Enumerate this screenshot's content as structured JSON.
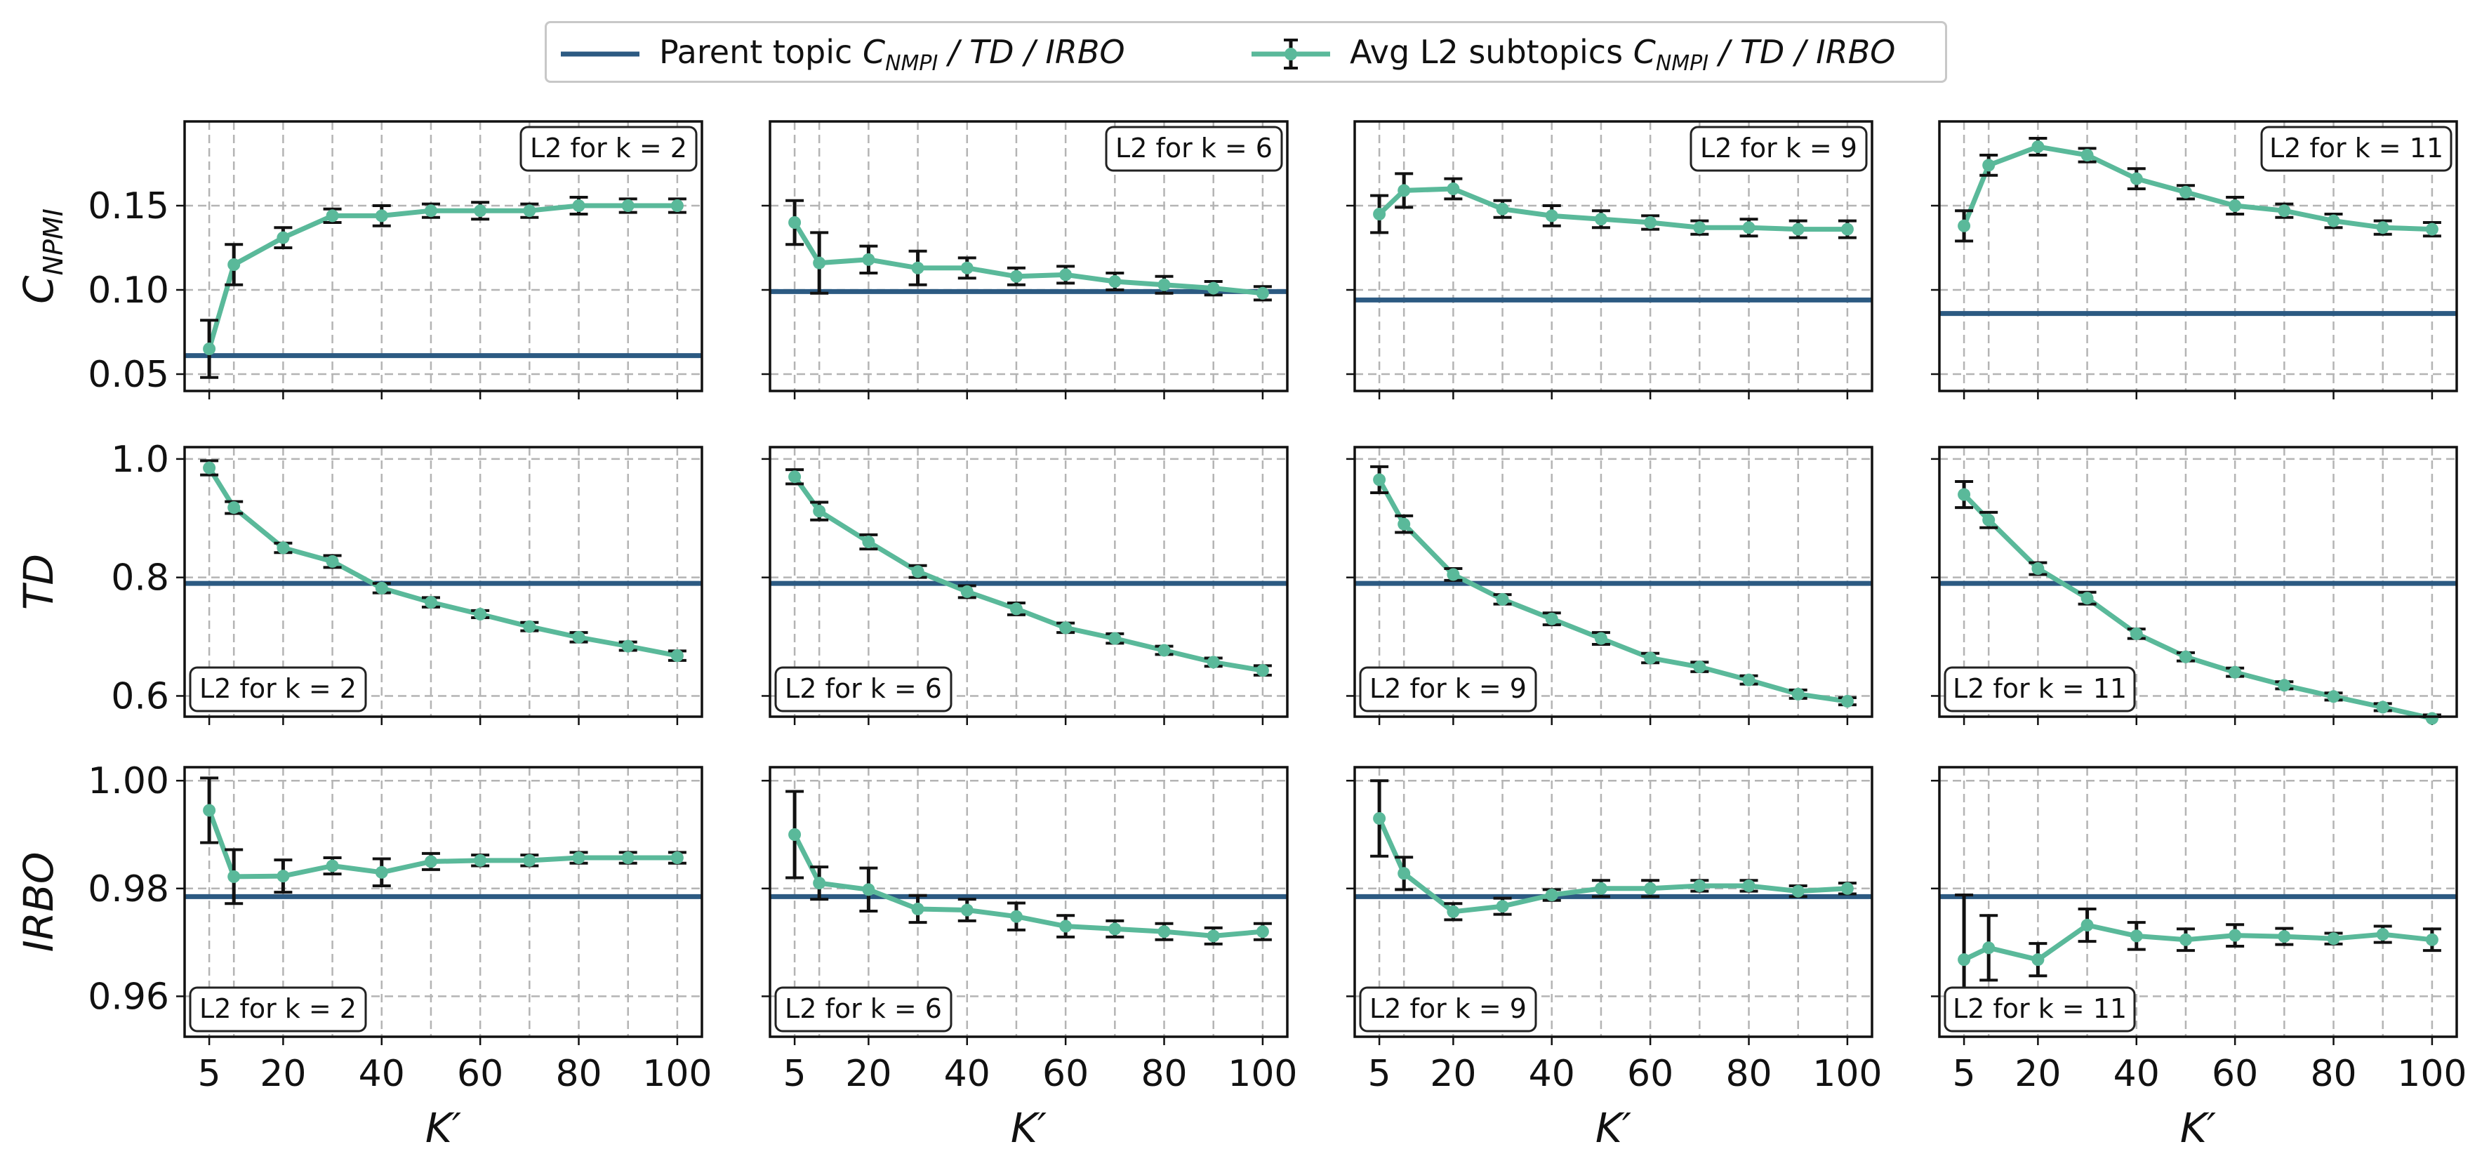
{
  "legend": {
    "parent_prefix": "Parent topic ",
    "avg_prefix": "Avg L2 subtopics ",
    "metric_base": "C",
    "metric_sub": "NMPI",
    "metric_rest": " / TD / IRBO"
  },
  "colors": {
    "parent_line": "#2c5a82",
    "subtopic_line": "#5ab99a",
    "error_bar": "#111111",
    "grid": "#b4b4b4"
  },
  "chart_data": {
    "type": "line",
    "x": [
      5,
      10,
      20,
      30,
      40,
      50,
      60,
      70,
      80,
      90,
      100
    ],
    "xticks": [
      "5",
      "20",
      "40",
      "60",
      "80",
      "100"
    ],
    "xlabel": "K′",
    "columns": [
      "L2 for k = 2",
      "L2 for k = 6",
      "L2 for k = 9",
      "L2 for k = 11"
    ],
    "grid": true,
    "rows": [
      {
        "metric": "CNPMI",
        "ylabel_base": "C",
        "ylabel_sub": "NPMI",
        "ylim": [
          0.04,
          0.2
        ],
        "yticks": [
          "0.05",
          "0.10",
          "0.15"
        ],
        "label_position": "top-right",
        "panels": [
          {
            "parent": 0.061,
            "y": [
              0.065,
              0.115,
              0.131,
              0.144,
              0.144,
              0.147,
              0.147,
              0.147,
              0.15,
              0.15,
              0.15
            ],
            "err": [
              0.017,
              0.012,
              0.006,
              0.004,
              0.006,
              0.004,
              0.005,
              0.004,
              0.005,
              0.004,
              0.004
            ]
          },
          {
            "parent": 0.099,
            "y": [
              0.14,
              0.116,
              0.118,
              0.113,
              0.113,
              0.108,
              0.109,
              0.105,
              0.103,
              0.101,
              0.098
            ],
            "err": [
              0.013,
              0.018,
              0.008,
              0.01,
              0.006,
              0.005,
              0.005,
              0.005,
              0.005,
              0.004,
              0.004
            ]
          },
          {
            "parent": 0.094,
            "y": [
              0.145,
              0.159,
              0.16,
              0.148,
              0.144,
              0.142,
              0.14,
              0.137,
              0.137,
              0.136,
              0.136
            ],
            "err": [
              0.011,
              0.01,
              0.006,
              0.005,
              0.006,
              0.005,
              0.004,
              0.004,
              0.005,
              0.005,
              0.005
            ]
          },
          {
            "parent": 0.086,
            "y": [
              0.138,
              0.174,
              0.185,
              0.18,
              0.166,
              0.158,
              0.15,
              0.147,
              0.141,
              0.137,
              0.136
            ],
            "err": [
              0.009,
              0.006,
              0.005,
              0.004,
              0.006,
              0.004,
              0.005,
              0.004,
              0.004,
              0.004,
              0.004
            ]
          }
        ]
      },
      {
        "metric": "TD",
        "ylabel_base": "TD",
        "ylabel_sub": "",
        "ylim": [
          0.565,
          1.02
        ],
        "yticks": [
          "0.6",
          "0.8",
          "1.0"
        ],
        "label_position": "bottom-left",
        "panels": [
          {
            "parent": 0.79,
            "y": [
              0.985,
              0.918,
              0.85,
              0.827,
              0.782,
              0.758,
              0.738,
              0.717,
              0.699,
              0.684,
              0.668
            ],
            "err": [
              0.012,
              0.01,
              0.008,
              0.01,
              0.008,
              0.008,
              0.006,
              0.007,
              0.008,
              0.007,
              0.008
            ]
          },
          {
            "parent": 0.79,
            "y": [
              0.97,
              0.912,
              0.86,
              0.81,
              0.776,
              0.747,
              0.715,
              0.697,
              0.677,
              0.657,
              0.643
            ],
            "err": [
              0.012,
              0.015,
              0.012,
              0.01,
              0.01,
              0.01,
              0.008,
              0.008,
              0.007,
              0.007,
              0.008
            ]
          },
          {
            "parent": 0.79,
            "y": [
              0.965,
              0.89,
              0.805,
              0.763,
              0.73,
              0.697,
              0.664,
              0.649,
              0.627,
              0.603,
              0.591
            ],
            "err": [
              0.022,
              0.014,
              0.01,
              0.008,
              0.01,
              0.01,
              0.008,
              0.008,
              0.007,
              0.007,
              0.006
            ]
          },
          {
            "parent": 0.79,
            "y": [
              0.94,
              0.897,
              0.815,
              0.765,
              0.705,
              0.666,
              0.64,
              0.618,
              0.599,
              0.581,
              0.562
            ],
            "err": [
              0.022,
              0.013,
              0.01,
              0.01,
              0.008,
              0.007,
              0.007,
              0.006,
              0.006,
              0.006,
              0.006
            ]
          }
        ]
      },
      {
        "metric": "IRBO",
        "ylabel_base": "IRBO",
        "ylabel_sub": "",
        "ylim": [
          0.9525,
          1.0025
        ],
        "yticks": [
          "0.96",
          "0.98",
          "1.00"
        ],
        "label_position": "bottom-left",
        "panels": [
          {
            "parent": 0.9785,
            "y": [
              0.9945,
              0.9822,
              0.9823,
              0.9842,
              0.983,
              0.985,
              0.9852,
              0.9852,
              0.9857,
              0.9857,
              0.9857
            ],
            "err": [
              0.006,
              0.005,
              0.003,
              0.0015,
              0.0025,
              0.0015,
              0.001,
              0.001,
              0.001,
              0.001,
              0.001
            ]
          },
          {
            "parent": 0.9785,
            "y": [
              0.99,
              0.981,
              0.9798,
              0.9762,
              0.976,
              0.9748,
              0.973,
              0.9725,
              0.972,
              0.9712,
              0.972
            ],
            "err": [
              0.008,
              0.003,
              0.004,
              0.0025,
              0.002,
              0.0025,
              0.002,
              0.0015,
              0.0015,
              0.0015,
              0.0015
            ]
          },
          {
            "parent": 0.9785,
            "y": [
              0.993,
              0.9828,
              0.9757,
              0.9767,
              0.9788,
              0.98,
              0.98,
              0.9805,
              0.9805,
              0.9795,
              0.98
            ],
            "err": [
              0.007,
              0.003,
              0.0015,
              0.0015,
              0.001,
              0.0015,
              0.0015,
              0.001,
              0.001,
              0.001,
              0.001
            ]
          },
          {
            "parent": 0.9785,
            "y": [
              0.9668,
              0.969,
              0.9668,
              0.9732,
              0.9712,
              0.9705,
              0.9713,
              0.9711,
              0.9707,
              0.9715,
              0.9705
            ],
            "err": [
              0.012,
              0.006,
              0.003,
              0.003,
              0.0025,
              0.002,
              0.002,
              0.0015,
              0.001,
              0.0015,
              0.002
            ]
          }
        ]
      }
    ]
  }
}
